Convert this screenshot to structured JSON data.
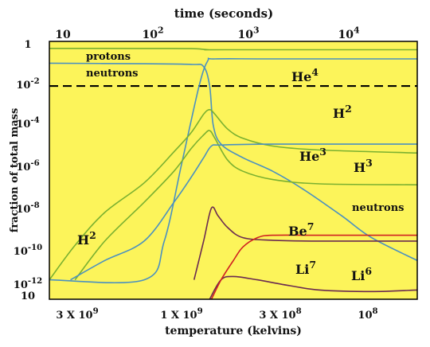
{
  "chart_data": {
    "type": "line",
    "top_axis": {
      "label": "time (seconds)",
      "scale": "log",
      "range": [
        5.5,
        29000
      ],
      "ticks": [
        {
          "base": "10",
          "exp": ""
        },
        {
          "base": "10",
          "exp": "2"
        },
        {
          "base": "10",
          "exp": "3"
        },
        {
          "base": "10",
          "exp": "4"
        }
      ]
    },
    "x_axis": {
      "label": "temperature (kelvins)",
      "scale": "log",
      "direction": "decreasing to the right",
      "range": [
        5000000000,
        60000000
      ],
      "ticks": [
        {
          "mantissa": "3 X 10",
          "exp": "9"
        },
        {
          "mantissa": "1 X 10",
          "exp": "9"
        },
        {
          "mantissa": "3 X 10",
          "exp": "8"
        },
        {
          "mantissa": "10",
          "exp": "8"
        }
      ]
    },
    "y_axis": {
      "label": "fraction of total mass",
      "scale": "log",
      "range": [
        1e-13,
        2
      ],
      "ticks": [
        {
          "base": "1",
          "exp": ""
        },
        {
          "base": "10",
          "exp": "-2"
        },
        {
          "base": "10",
          "exp": "-4"
        },
        {
          "base": "10",
          "exp": "-6"
        },
        {
          "base": "10",
          "exp": "-8"
        },
        {
          "base": "10",
          "exp": "-10"
        },
        {
          "base": "10",
          "exp": "-12"
        },
        {
          "base": "10",
          "exp": ""
        }
      ]
    },
    "reference_line": {
      "value": 0.01,
      "style": "dashed"
    },
    "series": [
      {
        "name": "protons",
        "color": "#7ab030",
        "points": [
          [
            5.5,
            0.87
          ],
          [
            50,
            0.86
          ],
          [
            150,
            0.85
          ],
          [
            220,
            0.75
          ],
          [
            320,
            0.74
          ],
          [
            29000,
            0.74
          ]
        ]
      },
      {
        "name": "neutrons",
        "color": "#4a90c0",
        "points": [
          [
            5.5,
            0.15
          ],
          [
            50,
            0.14
          ],
          [
            150,
            0.13
          ],
          [
            200,
            0.1
          ],
          [
            230,
            0.01
          ],
          [
            250,
            0.0001
          ],
          [
            300,
            1e-05
          ],
          [
            500,
            2e-06
          ],
          [
            1000,
            4e-07
          ],
          [
            2000,
            5e-08
          ],
          [
            5000,
            2e-09
          ],
          [
            10000,
            1.5e-10
          ],
          [
            29000,
            1e-11
          ]
        ]
      },
      {
        "name": "He4",
        "color": "#4a90c0",
        "points": [
          [
            5.5,
            1e-12
          ],
          [
            50,
            1e-12
          ],
          [
            80,
            1e-10
          ],
          [
            120,
            1e-06
          ],
          [
            180,
            0.01
          ],
          [
            220,
            0.2
          ],
          [
            260,
            0.25
          ],
          [
            1000,
            0.25
          ],
          [
            29000,
            0.25
          ]
        ]
      },
      {
        "name": "H2",
        "color": "#7ab030",
        "points": [
          [
            5.5,
            1e-12
          ],
          [
            10,
            6e-11
          ],
          [
            20,
            3e-09
          ],
          [
            50,
            1e-07
          ],
          [
            100,
            4e-06
          ],
          [
            150,
            4e-05
          ],
          [
            200,
            0.00035
          ],
          [
            230,
            0.0006
          ],
          [
            260,
            0.00035
          ],
          [
            350,
            6e-05
          ],
          [
            500,
            2e-05
          ],
          [
            1000,
            8e-06
          ],
          [
            3000,
            5e-06
          ],
          [
            29000,
            3.5e-06
          ]
        ]
      },
      {
        "name": "H3",
        "color": "#7ab030",
        "points": [
          [
            10,
            1e-12
          ],
          [
            20,
            1e-10
          ],
          [
            50,
            1e-08
          ],
          [
            100,
            4e-07
          ],
          [
            150,
            6e-06
          ],
          [
            200,
            3e-05
          ],
          [
            230,
            5e-05
          ],
          [
            260,
            2e-05
          ],
          [
            350,
            1.5e-06
          ],
          [
            500,
            4e-07
          ],
          [
            1000,
            1.5e-07
          ],
          [
            3000,
            9e-08
          ],
          [
            29000,
            8e-08
          ]
        ]
      },
      {
        "name": "He3",
        "color": "#4a90c0",
        "points": [
          [
            9,
            1e-12
          ],
          [
            20,
            1e-11
          ],
          [
            50,
            1e-10
          ],
          [
            100,
            1e-08
          ],
          [
            150,
            2e-07
          ],
          [
            200,
            2e-06
          ],
          [
            240,
            8e-06
          ],
          [
            300,
            9e-06
          ],
          [
            1000,
            1e-05
          ],
          [
            29000,
            1e-05
          ]
        ]
      },
      {
        "name": "Be7",
        "color": "#6a2a50",
        "points": [
          [
            160,
            1e-12
          ],
          [
            200,
            1e-10
          ],
          [
            240,
            5e-09
          ],
          [
            280,
            2e-09
          ],
          [
            350,
            5e-10
          ],
          [
            500,
            1.5e-10
          ],
          [
            1000,
            1.1e-10
          ],
          [
            3000,
            1e-10
          ],
          [
            29000,
            1e-10
          ]
        ]
      },
      {
        "name": "Li7",
        "color": "#6a2a50",
        "points": [
          [
            230,
            1e-13
          ],
          [
            300,
            1e-12
          ],
          [
            400,
            1.5e-12
          ],
          [
            700,
            1e-12
          ],
          [
            1500,
            5e-13
          ],
          [
            3000,
            3e-13
          ],
          [
            10000,
            2.5e-13
          ],
          [
            29000,
            3e-13
          ]
        ]
      },
      {
        "name": "Li7 (from Be7)",
        "color": "#d02020",
        "points": [
          [
            240,
            1e-13
          ],
          [
            300,
            1e-12
          ],
          [
            400,
            1e-11
          ],
          [
            500,
            5e-11
          ],
          [
            700,
            1.5e-10
          ],
          [
            1000,
            2e-10
          ],
          [
            3000,
            2e-10
          ],
          [
            29000,
            2e-10
          ]
        ]
      }
    ],
    "annotations": [
      {
        "text": "protons",
        "sup": ""
      },
      {
        "text": "neutrons",
        "sup": ""
      },
      {
        "text": "He",
        "sup": "4"
      },
      {
        "text": "H",
        "sup": "2"
      },
      {
        "text": "He",
        "sup": "3"
      },
      {
        "text": "H",
        "sup": "3"
      },
      {
        "text": "neutrons",
        "sup": ""
      },
      {
        "text": "H",
        "sup": "2"
      },
      {
        "text": "Be",
        "sup": "7"
      },
      {
        "text": "Li",
        "sup": "7"
      },
      {
        "text": "Li",
        "sup": "6"
      }
    ],
    "grid": false,
    "colors": {
      "background": "#fcf45a",
      "frame": "#000000"
    }
  }
}
